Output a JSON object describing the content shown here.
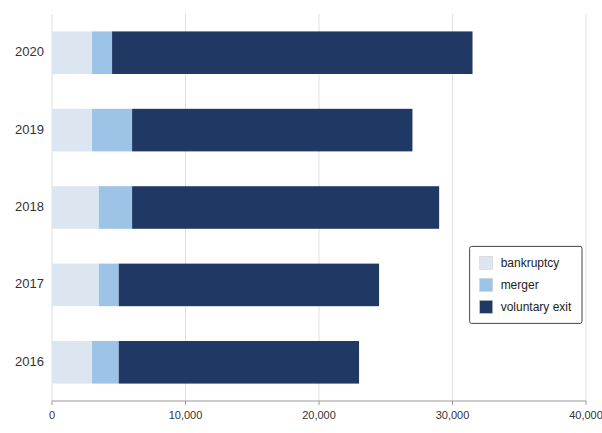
{
  "chart_data": {
    "type": "bar",
    "orientation": "horizontal",
    "stacked": true,
    "categories": [
      "2016",
      "2017",
      "2018",
      "2019",
      "2020"
    ],
    "series": [
      {
        "name": "bankruptcy",
        "color": "#dce6f1",
        "values": [
          3000,
          3500,
          3500,
          3000,
          3000
        ]
      },
      {
        "name": "merger",
        "color": "#9dc3e6",
        "values": [
          2000,
          1500,
          2500,
          3000,
          1500
        ]
      },
      {
        "name": "voluntary exit",
        "color": "#1f3864",
        "values": [
          18000,
          19500,
          23000,
          21000,
          27000
        ]
      }
    ],
    "xlim": [
      0,
      40000
    ],
    "xticks": [
      0,
      {
        "value": 10000,
        "label": "10,000"
      },
      {
        "value": 20000,
        "label": "20,000"
      },
      {
        "value": 30000,
        "label": "30,000"
      },
      {
        "value": 40000,
        "label": "40,000"
      }
    ],
    "grid": true,
    "legend": "right"
  }
}
